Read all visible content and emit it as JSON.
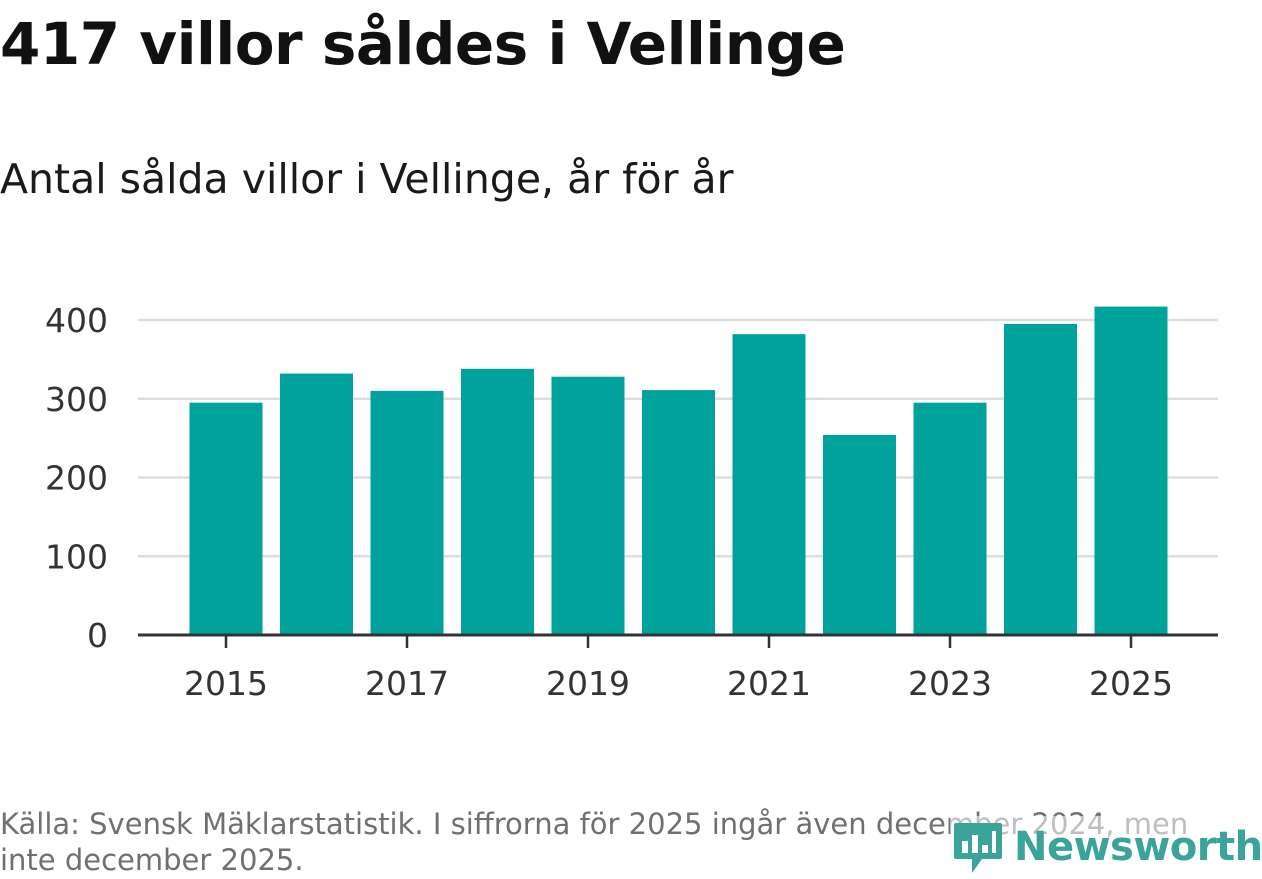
{
  "title": "417 villor såldes i Vellinge",
  "subtitle": "Antal sålda villor i Vellinge, år för år",
  "source": "Källa: Svensk Mäklarstatistik. I siffrorna för 2025 ingår även december 2024, men inte december 2025.",
  "brand": {
    "name": "Newsworthy",
    "icon": "newsworthy-logo-icon"
  },
  "colors": {
    "bar": "#00a39b",
    "grid": "#dddddd",
    "axis": "#333333",
    "tick_text": "#333333",
    "brand": "#3aa39a"
  },
  "chart_data": {
    "type": "bar",
    "title": "Antal sålda villor i Vellinge, år för år",
    "xlabel": "",
    "ylabel": "",
    "categories": [
      "2015",
      "2016",
      "2017",
      "2018",
      "2019",
      "2020",
      "2021",
      "2022",
      "2023",
      "2024",
      "2025"
    ],
    "values": [
      295,
      332,
      310,
      338,
      328,
      311,
      382,
      254,
      295,
      395,
      417
    ],
    "ylim": [
      0,
      400
    ],
    "yticks": [
      0,
      100,
      200,
      300,
      400
    ],
    "ytick_labels": [
      "0",
      "100",
      "200",
      "300",
      "400"
    ],
    "xtick_labels": [
      "2015",
      "2017",
      "2019",
      "2021",
      "2023",
      "2025"
    ],
    "grid": true,
    "legend": "none"
  }
}
